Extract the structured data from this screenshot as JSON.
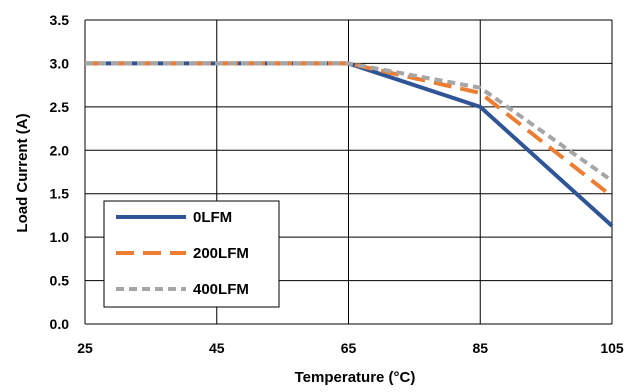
{
  "chart_data": {
    "type": "line",
    "title": "",
    "xlabel": "Temperature (°C)",
    "ylabel": "Load Current (A)",
    "xlim": [
      25,
      105
    ],
    "ylim": [
      0,
      3.5
    ],
    "x_ticks": [
      "25",
      "45",
      "65",
      "85",
      "105"
    ],
    "y_ticks": [
      "0.0",
      "0.5",
      "1.0",
      "1.5",
      "2.0",
      "2.5",
      "3.0",
      "3.5"
    ],
    "grid": true,
    "legend_position": "bottom-left",
    "series": [
      {
        "name": "0LFM",
        "color": "#2f5597",
        "dash": "solid",
        "x": [
          25,
          65,
          85,
          105
        ],
        "y": [
          3.0,
          3.0,
          2.5,
          1.13
        ]
      },
      {
        "name": "200LFM",
        "color": "#ed7d31",
        "dash": "long-dash",
        "x": [
          25,
          65,
          85,
          105
        ],
        "y": [
          3.0,
          3.0,
          2.66,
          1.47
        ]
      },
      {
        "name": "400LFM",
        "color": "#a6a6a6",
        "dash": "short-dash",
        "x": [
          25,
          65,
          85,
          105
        ],
        "y": [
          3.0,
          3.0,
          2.72,
          1.65
        ]
      }
    ]
  }
}
